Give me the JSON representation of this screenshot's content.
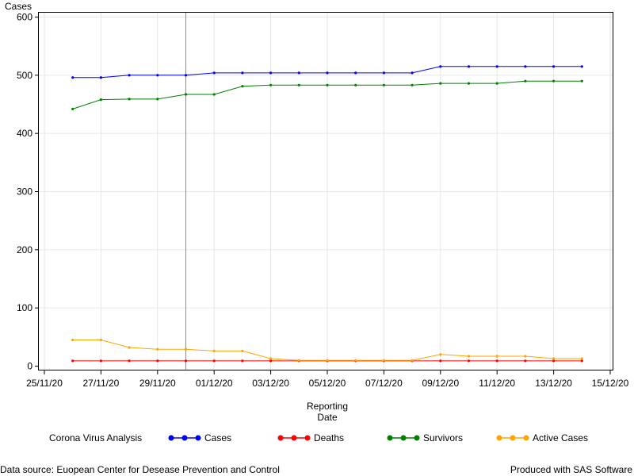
{
  "chart_data": {
    "type": "line",
    "ylabel": "Cases",
    "xlabel": [
      "Reporting",
      "Date"
    ],
    "ylim": [
      0,
      600
    ],
    "yticks": [
      0,
      100,
      200,
      300,
      400,
      500,
      600
    ],
    "xlim": [
      "2020-11-25",
      "2020-12-15"
    ],
    "xticks": [
      "25/11/20",
      "27/11/20",
      "29/11/20",
      "01/12/20",
      "03/12/20",
      "05/12/20",
      "07/12/20",
      "09/12/20",
      "11/12/20",
      "13/12/20",
      "15/12/20"
    ],
    "grid": true,
    "reference_line_date": "2020-11-30",
    "x": [
      "2020-11-26",
      "2020-11-27",
      "2020-11-28",
      "2020-11-29",
      "2020-11-30",
      "2020-12-01",
      "2020-12-02",
      "2020-12-03",
      "2020-12-04",
      "2020-12-05",
      "2020-12-06",
      "2020-12-07",
      "2020-12-08",
      "2020-12-09",
      "2020-12-10",
      "2020-12-11",
      "2020-12-12",
      "2020-12-13",
      "2020-12-14"
    ],
    "series": [
      {
        "name": "Cases",
        "color": "#0000ff",
        "values": [
          496,
          496,
          500,
          500,
          500,
          504,
          504,
          504,
          504,
          504,
          504,
          504,
          504,
          515,
          515,
          515,
          515,
          515,
          515
        ]
      },
      {
        "name": "Deaths",
        "color": "#ff0000",
        "values": [
          9,
          9,
          9,
          9,
          9,
          9,
          9,
          9,
          9,
          9,
          9,
          9,
          9,
          9,
          9,
          9,
          9,
          9,
          9
        ]
      },
      {
        "name": "Survivors",
        "color": "#008000",
        "values": [
          442,
          458,
          459,
          459,
          467,
          467,
          481,
          483,
          483,
          483,
          483,
          483,
          483,
          486,
          486,
          486,
          490,
          490,
          490
        ]
      },
      {
        "name": "Active Cases",
        "color": "#ffa500",
        "values": [
          45,
          45,
          32,
          29,
          29,
          26,
          26,
          13,
          10,
          10,
          10,
          10,
          10,
          20,
          17,
          17,
          17,
          13,
          13
        ]
      }
    ],
    "legend": {
      "title": "Corona Virus Analysis",
      "position": "bottom"
    }
  },
  "footer": {
    "source": "Data source: Euopean Center for Desease Prevention and Control",
    "produced_by": "Produced with SAS Software"
  }
}
